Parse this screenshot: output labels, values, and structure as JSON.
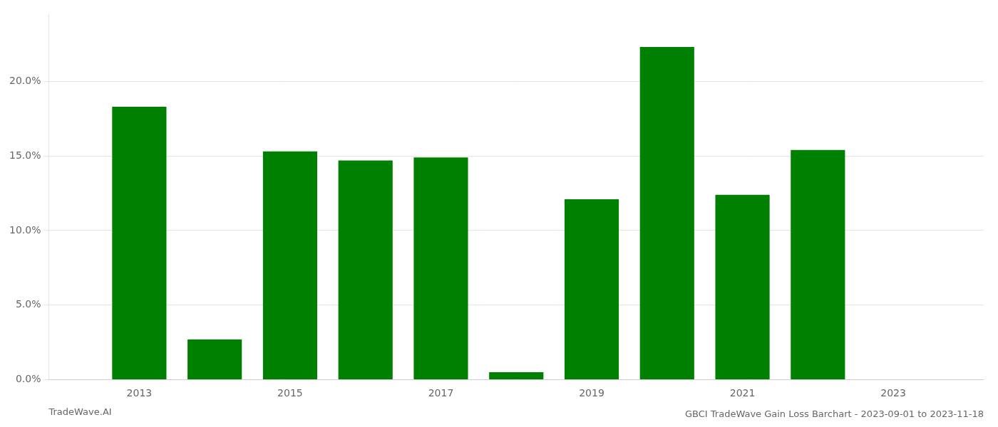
{
  "chart_data": {
    "type": "bar",
    "title": "GBCI TradeWave Gain Loss Barchart - 2023-09-01 to 2023-11-18",
    "annotations": [
      "TradeWave.AI"
    ],
    "x": [
      2013,
      2014,
      2015,
      2016,
      2017,
      2018,
      2019,
      2020,
      2021,
      2022,
      2023
    ],
    "values": [
      0.183,
      0.027,
      0.153,
      0.147,
      0.149,
      0.005,
      0.121,
      0.223,
      0.124,
      0.154,
      0.0
    ],
    "color": "#008000",
    "xlim": [
      2011.8,
      2024.2
    ],
    "xticks": [
      2013,
      2015,
      2017,
      2019,
      2021,
      2023
    ],
    "ylim": [
      0,
      0.245
    ],
    "yticks": [
      {
        "value": 0.0,
        "label": "0.0%"
      },
      {
        "value": 0.05,
        "label": "5.0%"
      },
      {
        "value": 0.1,
        "label": "10.0%"
      },
      {
        "value": 0.15,
        "label": "15.0%"
      },
      {
        "value": 0.2,
        "label": "20.0%"
      }
    ],
    "grid": "y"
  }
}
